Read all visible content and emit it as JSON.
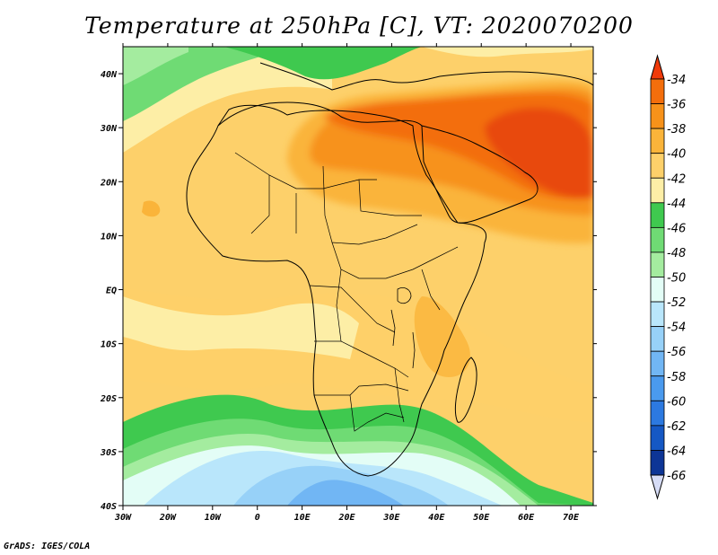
{
  "title": "Temperature at 250hPa [C], VT: 2020070200",
  "credit": "GrADS: IGES/COLA",
  "map": {
    "lon_range": [
      -30,
      75
    ],
    "lat_range": [
      -40,
      45
    ],
    "x_ticks": [
      "30W",
      "20W",
      "10W",
      "0",
      "10E",
      "20E",
      "30E",
      "40E",
      "50E",
      "60E",
      "70E"
    ],
    "y_ticks": [
      "40N",
      "30N",
      "20N",
      "10N",
      "EQ",
      "10S",
      "20S",
      "30S",
      "40S"
    ]
  },
  "colorbar": {
    "labels": [
      "-34",
      "-36",
      "-38",
      "-40",
      "-42",
      "-44",
      "-46",
      "-48",
      "-50",
      "-52",
      "-54",
      "-56",
      "-58",
      "-60",
      "-62",
      "-64",
      "-66"
    ],
    "colors": [
      "#e84a10",
      "#f36e0c",
      "#f7921a",
      "#fab43a",
      "#fdd06a",
      "#fdeea6",
      "#3fc94f",
      "#6fdb74",
      "#a4ec9f",
      "#e3fdf6",
      "#b9e6fb",
      "#97d1f8",
      "#71b6f4",
      "#4a9aee",
      "#2c79e0",
      "#1558c4",
      "#0d3596",
      "#06126a"
    ],
    "end_colors": {
      "top": "#f03a0a",
      "bottom": "#d6dcf6"
    }
  }
}
